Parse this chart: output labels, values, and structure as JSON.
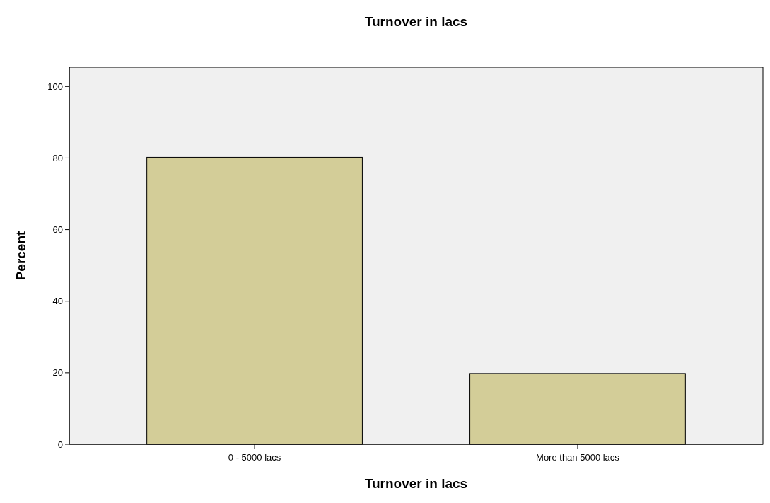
{
  "chart_data": {
    "type": "bar",
    "title": "Turnover in lacs",
    "xlabel": "Turnover in lacs",
    "ylabel": "Percent",
    "categories": [
      "0 - 5000 lacs",
      "More than 5000 lacs"
    ],
    "values": [
      80.2,
      19.8
    ],
    "color": "#d3cd98",
    "ylim": [
      0,
      105.4
    ],
    "yticks": [
      0,
      20,
      40,
      60,
      80,
      100
    ],
    "grid": false
  }
}
